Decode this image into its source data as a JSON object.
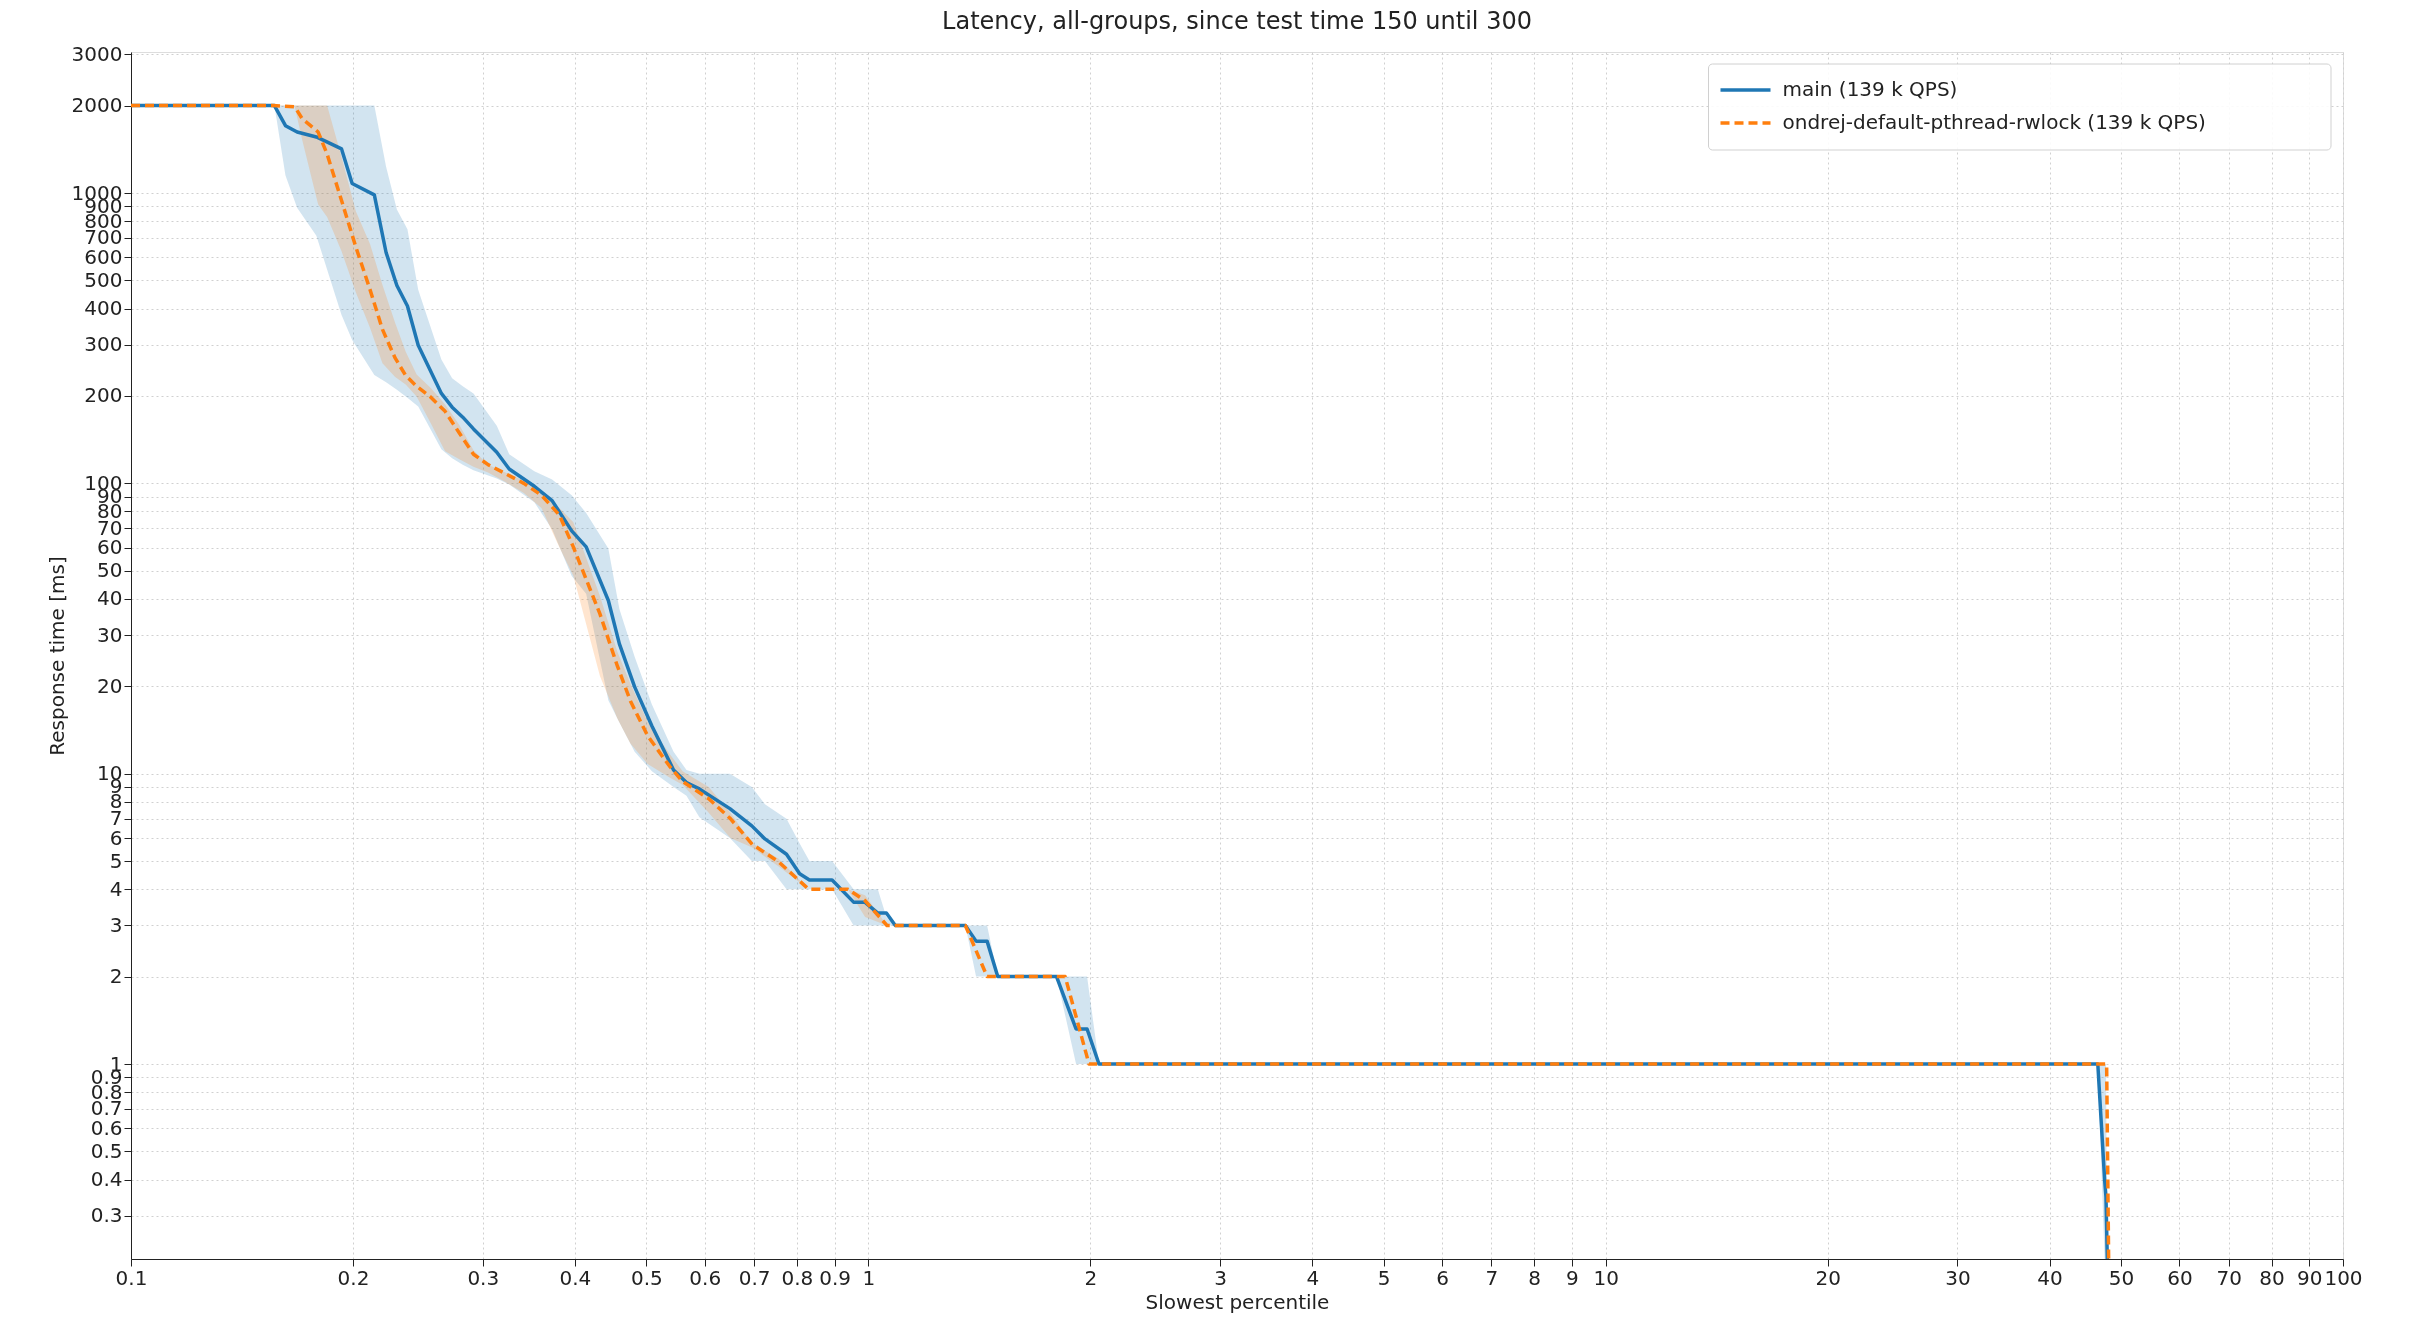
{
  "chart_data": {
    "type": "line",
    "title": "Latency, all-groups, since test time 150 until 300",
    "xlabel": "Slowest percentile",
    "ylabel": "Response time [ms]",
    "log": "xy",
    "grid": true,
    "legend": "top right",
    "xlim": [
      0.1,
      100
    ],
    "ylim": [
      0.213,
      3060
    ],
    "xticks": [
      0.1,
      0.2,
      0.3,
      0.4,
      0.5,
      0.6,
      0.7,
      0.8,
      0.9,
      1,
      2,
      3,
      4,
      5,
      6,
      7,
      8,
      9,
      10,
      20,
      30,
      40,
      50,
      60,
      70,
      80,
      90,
      100
    ],
    "yticks": [
      0.3,
      0.4,
      0.5,
      0.6,
      0.7,
      0.8,
      0.9,
      1,
      2,
      3,
      4,
      5,
      6,
      7,
      8,
      9,
      10,
      20,
      30,
      40,
      50,
      60,
      70,
      80,
      90,
      100,
      200,
      300,
      400,
      500,
      600,
      700,
      800,
      900,
      1000,
      2000,
      3000
    ],
    "series": [
      {
        "name": "main (139 k QPS)",
        "color": "#1f77b4",
        "line_style": "solid",
        "x": [
          0.1,
          0.1565,
          0.162,
          0.168,
          0.1784,
          0.193,
          0.1995,
          0.2138,
          0.2218,
          0.2294,
          0.2371,
          0.2452,
          0.2636,
          0.2726,
          0.2818,
          0.2914,
          0.3134,
          0.3258,
          0.3524,
          0.3725,
          0.396,
          0.4143,
          0.444,
          0.4596,
          0.482,
          0.5087,
          0.5443,
          0.5667,
          0.59,
          0.649,
          0.695,
          0.724,
          0.7745,
          0.807,
          0.832,
          0.893,
          0.955,
          0.989,
          1.03,
          1.058,
          1.088,
          1.354,
          1.4,
          1.449,
          1.498,
          1.8,
          1.913,
          1.98,
          2.055,
          46.5,
          47.5,
          47.7,
          47.9
        ],
        "values": [
          2000,
          2000,
          1706,
          1622,
          1560,
          1419,
          1079,
          985,
          624,
          480,
          408,
          299,
          204,
          183,
          169,
          154,
          128,
          112,
          97.7,
          87.2,
          68.6,
          60.4,
          39.5,
          28.0,
          19.9,
          14.6,
          10.3,
          9.32,
          8.86,
          7.58,
          6.61,
          5.96,
          5.28,
          4.52,
          4.3,
          4.3,
          3.61,
          3.61,
          3.31,
          3.31,
          3,
          3,
          2.65,
          2.65,
          2,
          2,
          1.32,
          1.32,
          1,
          1,
          0.4,
          0.349,
          0.213
        ],
        "lower": [
          2000,
          2000,
          1148,
          889,
          713,
          380,
          312,
          236,
          223,
          210,
          197,
          184,
          131,
          122,
          116,
          111,
          104,
          99,
          86,
          69.5,
          48,
          41.7,
          17.9,
          15.0,
          11.9,
          10.2,
          9.0,
          8.4,
          7.08,
          6,
          5,
          5,
          4,
          4,
          4,
          4,
          3,
          3,
          3,
          3,
          3,
          3,
          2,
          2,
          2,
          2,
          1,
          1,
          1,
          1,
          0.213,
          0.213,
          0.213
        ],
        "upper": [
          2000,
          2000,
          2000,
          2000,
          2000,
          2000,
          2000,
          2000,
          1232,
          877,
          750,
          464,
          267,
          230,
          216,
          204,
          158,
          126,
          110,
          103,
          91,
          79,
          59.7,
          36.9,
          25.3,
          17.3,
          11.9,
          10.3,
          10,
          10,
          9,
          7.85,
          7,
          5.75,
          5,
          5,
          4,
          4,
          4,
          3.21,
          3,
          3,
          3,
          3,
          2,
          2,
          2,
          2,
          1,
          1,
          1,
          1,
          0.213
        ]
      },
      {
        "name": "ondrej-default-pthread-rwlock (139 k QPS)",
        "color": "#ff7f0e",
        "line_style": "dashed",
        "x": [
          0.1,
          0.156,
          0.1668,
          0.1706,
          0.1794,
          0.1845,
          0.193,
          0.2018,
          0.211,
          0.2193,
          0.228,
          0.2358,
          0.244,
          0.255,
          0.2667,
          0.2788,
          0.2914,
          0.305,
          0.322,
          0.341,
          0.3603,
          0.381,
          0.398,
          0.4325,
          0.4567,
          0.4757,
          0.502,
          0.5377,
          0.5598,
          0.6075,
          0.65,
          0.696,
          0.755,
          0.83,
          0.938,
          0.99,
          1.06,
          1.354,
          1.449,
          1.849,
          1.992,
          47.8,
          48.1
        ],
        "values": [
          2000,
          2000,
          1980,
          1806,
          1622,
          1361,
          942,
          652,
          464,
          339,
          271,
          235,
          216,
          198,
          177,
          149,
          126,
          116,
          108,
          100,
          91,
          77.8,
          60.4,
          35.5,
          23.5,
          17.8,
          13.5,
          10.6,
          9.4,
          8.2,
          7.0,
          5.71,
          4.98,
          4,
          4,
          3.65,
          3,
          3,
          2,
          2,
          1,
          1,
          0.213
        ],
        "lower": [
          2000,
          2000,
          1980,
          1532,
          913,
          827,
          630,
          455,
          343,
          259,
          233,
          219,
          199,
          161,
          129,
          121,
          114,
          109,
          101,
          92.7,
          82.3,
          60.3,
          48.1,
          21.7,
          15.5,
          12.7,
          10.8,
          9.7,
          9.16,
          7.33,
          6,
          5.57,
          4.8,
          4,
          4,
          3.21,
          3,
          3,
          2,
          2,
          1,
          1,
          0.213
        ],
        "upper": [
          2000,
          2000,
          2000,
          2000,
          2000,
          2000,
          1330,
          865,
          666,
          482,
          359,
          284,
          237,
          213,
          187,
          159,
          130,
          116,
          109,
          102,
          93.8,
          82.3,
          73.5,
          40.9,
          26.3,
          20.4,
          15.1,
          11.7,
          10.2,
          9.0,
          7.33,
          5.75,
          5.1,
          4,
          4,
          3.81,
          3,
          3,
          2,
          2,
          1,
          1,
          0.213
        ]
      }
    ]
  }
}
